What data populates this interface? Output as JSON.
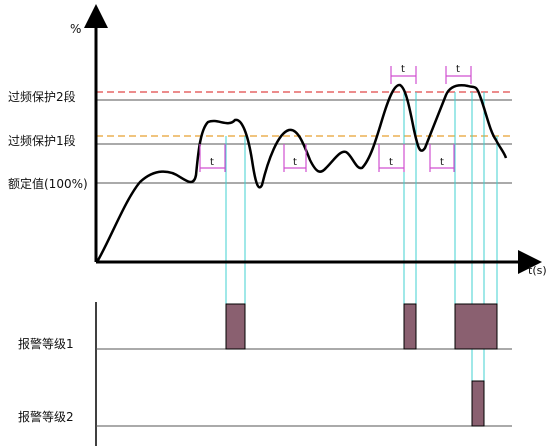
{
  "axes": {
    "y_unit": "%",
    "x_label": "t(s)"
  },
  "levels": [
    {
      "id": "stage2",
      "label": "过频保护2段",
      "threshold_color": "#e04848"
    },
    {
      "id": "stage1",
      "label": "过频保护1段",
      "threshold_color": "#e8a030"
    },
    {
      "id": "rated",
      "label": "额定值(100%)"
    }
  ],
  "delay_marker_label": "t",
  "alarm_rows": [
    {
      "id": "alarm1",
      "label": "报警等级1"
    },
    {
      "id": "alarm2",
      "label": "报警等级2"
    }
  ],
  "colors": {
    "curve": "#000000",
    "delay_bracket": "#d050d0",
    "guide_line": "#40d0d0",
    "pulse_fill": "#8a6070",
    "axis": "#000000"
  }
}
